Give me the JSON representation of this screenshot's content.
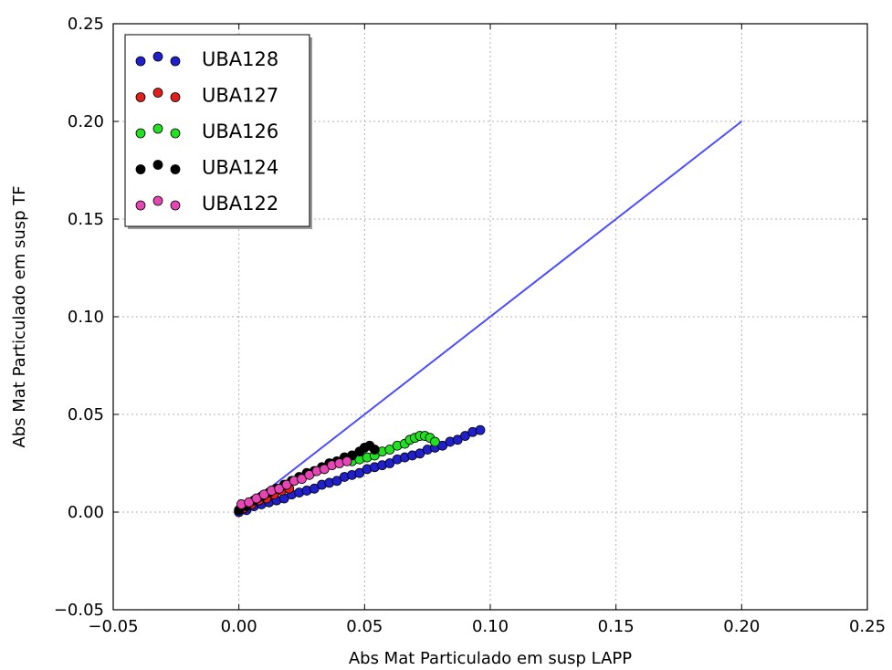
{
  "chart_data": {
    "type": "scatter",
    "title": "",
    "xlabel": "Abs Mat Particulado em susp LAPP",
    "ylabel": "Abs Mat Particulado em susp TF",
    "xlim": [
      -0.05,
      0.25
    ],
    "ylim": [
      -0.05,
      0.25
    ],
    "xticks": [
      -0.05,
      0.0,
      0.05,
      0.1,
      0.15,
      0.2,
      0.25
    ],
    "yticks": [
      -0.05,
      0.0,
      0.05,
      0.1,
      0.15,
      0.2,
      0.25
    ],
    "xtick_labels": [
      "−0.05",
      "0.00",
      "0.05",
      "0.10",
      "0.15",
      "0.20",
      "0.25"
    ],
    "ytick_labels": [
      "−0.05",
      "0.00",
      "0.05",
      "0.10",
      "0.15",
      "0.20",
      "0.25"
    ],
    "grid": true,
    "legend_position": "top-left",
    "reference_line": {
      "x": [
        0.0,
        0.2
      ],
      "y": [
        0.0,
        0.2
      ],
      "color": "#4d4dff"
    },
    "series": [
      {
        "name": "UBA128",
        "color": "#1f1fcc",
        "points": [
          [
            0.0,
            0.0
          ],
          [
            0.003,
            0.001
          ],
          [
            0.006,
            0.003
          ],
          [
            0.009,
            0.004
          ],
          [
            0.012,
            0.005
          ],
          [
            0.015,
            0.006
          ],
          [
            0.018,
            0.007
          ],
          [
            0.021,
            0.009
          ],
          [
            0.024,
            0.01
          ],
          [
            0.027,
            0.011
          ],
          [
            0.03,
            0.012
          ],
          [
            0.033,
            0.014
          ],
          [
            0.036,
            0.015
          ],
          [
            0.039,
            0.016
          ],
          [
            0.042,
            0.018
          ],
          [
            0.045,
            0.019
          ],
          [
            0.048,
            0.02
          ],
          [
            0.051,
            0.022
          ],
          [
            0.054,
            0.023
          ],
          [
            0.057,
            0.024
          ],
          [
            0.06,
            0.025
          ],
          [
            0.063,
            0.027
          ],
          [
            0.066,
            0.028
          ],
          [
            0.069,
            0.029
          ],
          [
            0.072,
            0.03
          ],
          [
            0.075,
            0.032
          ],
          [
            0.078,
            0.033
          ],
          [
            0.081,
            0.034
          ],
          [
            0.084,
            0.036
          ],
          [
            0.087,
            0.037
          ],
          [
            0.09,
            0.039
          ],
          [
            0.093,
            0.041
          ],
          [
            0.096,
            0.042
          ]
        ]
      },
      {
        "name": "UBA127",
        "color": "#e0201a",
        "points": [
          [
            0.002,
            0.002
          ],
          [
            0.005,
            0.004
          ],
          [
            0.008,
            0.006
          ],
          [
            0.011,
            0.007
          ],
          [
            0.014,
            0.009
          ],
          [
            0.017,
            0.011
          ],
          [
            0.02,
            0.012
          ]
        ]
      },
      {
        "name": "UBA126",
        "color": "#22e022",
        "points": [
          [
            0.045,
            0.026
          ],
          [
            0.048,
            0.027
          ],
          [
            0.051,
            0.028
          ],
          [
            0.054,
            0.029
          ],
          [
            0.057,
            0.031
          ],
          [
            0.06,
            0.032
          ],
          [
            0.063,
            0.034
          ],
          [
            0.066,
            0.035
          ],
          [
            0.068,
            0.037
          ],
          [
            0.07,
            0.038
          ],
          [
            0.072,
            0.039
          ],
          [
            0.074,
            0.039
          ],
          [
            0.076,
            0.038
          ],
          [
            0.078,
            0.036
          ]
        ]
      },
      {
        "name": "UBA124",
        "color": "#000000",
        "points": [
          [
            0.0,
            0.001
          ],
          [
            0.003,
            0.003
          ],
          [
            0.006,
            0.006
          ],
          [
            0.009,
            0.008
          ],
          [
            0.012,
            0.01
          ],
          [
            0.015,
            0.012
          ],
          [
            0.018,
            0.014
          ],
          [
            0.021,
            0.016
          ],
          [
            0.024,
            0.018
          ],
          [
            0.027,
            0.02
          ],
          [
            0.03,
            0.021
          ],
          [
            0.033,
            0.023
          ],
          [
            0.036,
            0.025
          ],
          [
            0.039,
            0.026
          ],
          [
            0.042,
            0.028
          ],
          [
            0.045,
            0.029
          ],
          [
            0.048,
            0.031
          ],
          [
            0.05,
            0.033
          ],
          [
            0.052,
            0.034
          ],
          [
            0.054,
            0.032
          ]
        ]
      },
      {
        "name": "UBA122",
        "color": "#e645b4",
        "points": [
          [
            0.001,
            0.004
          ],
          [
            0.004,
            0.005
          ],
          [
            0.007,
            0.007
          ],
          [
            0.01,
            0.009
          ],
          [
            0.013,
            0.011
          ],
          [
            0.016,
            0.012
          ],
          [
            0.019,
            0.014
          ],
          [
            0.022,
            0.016
          ],
          [
            0.025,
            0.017
          ],
          [
            0.028,
            0.019
          ],
          [
            0.031,
            0.021
          ],
          [
            0.034,
            0.022
          ],
          [
            0.037,
            0.024
          ],
          [
            0.04,
            0.025
          ],
          [
            0.043,
            0.026
          ]
        ]
      }
    ]
  }
}
